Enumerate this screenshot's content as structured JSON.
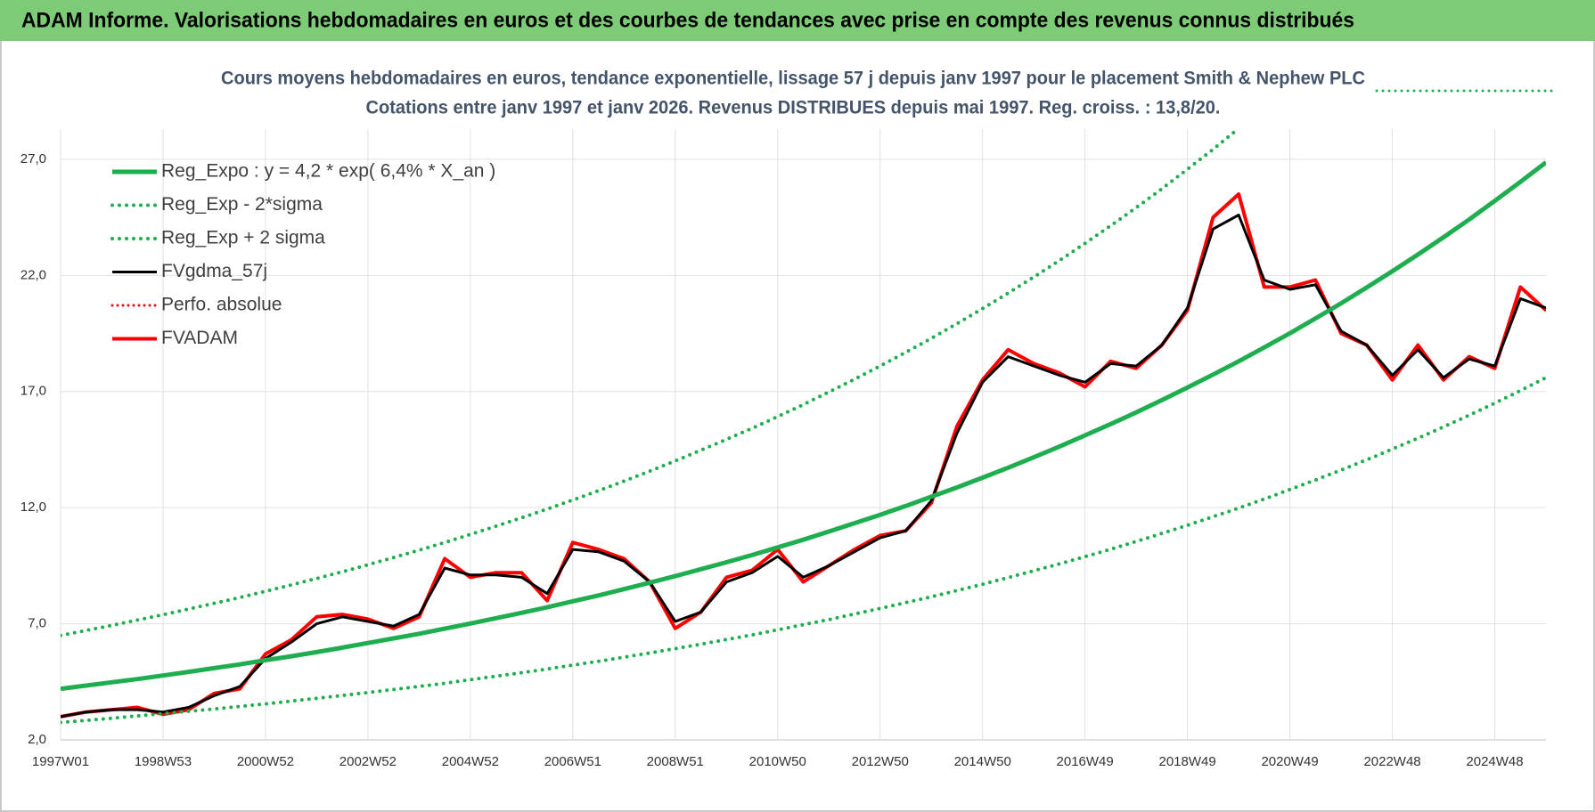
{
  "chart_data": {
    "type": "line",
    "header": "ADAM Informe. Valorisations hebdomadaires en euros et des courbes de tendances avec prise en compte des revenus connus distribués",
    "title": "Cours moyens hebdomadaires en euros, tendance exponentielle, lissage 57 j depuis janv 1997 pour le placement Smith & Nephew PLC",
    "subtitle": "Cotations entre janv 1997 et janv 2026. Revenus DISTRIBUES depuis mai 1997.  Reg. croiss. : 13,8/20.",
    "categories": [
      "1997W01",
      null,
      null,
      null,
      "1998W53",
      null,
      null,
      null,
      "2000W52",
      null,
      null,
      null,
      "2002W52",
      null,
      null,
      null,
      "2004W52",
      null,
      null,
      null,
      "2006W51",
      null,
      null,
      null,
      "2008W51",
      null,
      null,
      null,
      "2010W50",
      null,
      null,
      null,
      "2012W50",
      null,
      null,
      null,
      "2014W50",
      null,
      null,
      null,
      "2016W49",
      null,
      null,
      null,
      "2018W49",
      null,
      null,
      null,
      "2020W49",
      null,
      null,
      null,
      "2022W48",
      null,
      null,
      null,
      "2024W48",
      null,
      null
    ],
    "ylim": [
      2,
      28.3
    ],
    "yticks": [
      {
        "value": 2,
        "label": "2,0"
      },
      {
        "value": 7,
        "label": "7,0"
      },
      {
        "value": 12,
        "label": "12,0"
      },
      {
        "value": 17,
        "label": "17,0"
      },
      {
        "value": 22,
        "label": "22,0"
      },
      {
        "value": 27,
        "label": "27,0"
      }
    ],
    "grid": true,
    "legend_position": "upper left",
    "series": [
      {
        "name": "Reg_Expo : y = 4,2 * exp( 6,4% *  X_an )",
        "color": "#1fae4f",
        "style": "solid",
        "values": [
          4.2,
          4.34,
          4.48,
          4.62,
          4.77,
          4.93,
          5.09,
          5.25,
          5.43,
          5.6,
          5.78,
          5.97,
          6.17,
          6.37,
          6.57,
          6.79,
          7.01,
          7.24,
          7.47,
          7.71,
          7.97,
          8.22,
          8.49,
          8.77,
          9.05,
          9.35,
          9.65,
          9.96,
          10.29,
          10.62,
          10.97,
          11.33,
          11.69,
          12.07,
          12.47,
          12.87,
          13.29,
          13.72,
          14.17,
          14.63,
          15.11,
          15.6,
          16.1,
          16.63,
          17.17,
          17.73,
          18.3,
          18.9,
          19.51,
          20.15,
          20.8,
          21.48,
          22.18,
          22.9,
          23.64,
          24.41,
          25.21,
          26.03,
          26.87
        ]
      },
      {
        "name": "Reg_Exp - 2*sigma",
        "color": "#1fae4f",
        "style": "dotted",
        "values": [
          2.75,
          2.84,
          2.93,
          3.03,
          3.13,
          3.23,
          3.33,
          3.44,
          3.55,
          3.67,
          3.79,
          3.91,
          4.04,
          4.17,
          4.3,
          4.44,
          4.59,
          4.74,
          4.89,
          5.05,
          5.22,
          5.38,
          5.56,
          5.74,
          5.93,
          6.12,
          6.32,
          6.52,
          6.74,
          6.96,
          7.18,
          7.42,
          7.66,
          7.91,
          8.16,
          8.43,
          8.7,
          8.99,
          9.28,
          9.58,
          9.89,
          10.21,
          10.54,
          10.89,
          11.24,
          11.61,
          11.98,
          12.37,
          12.78,
          13.19,
          13.62,
          14.06,
          14.52,
          14.99,
          15.48,
          15.98,
          16.5,
          17.04,
          17.6
        ]
      },
      {
        "name": "Reg_Exp + 2 sigma",
        "color": "#1fae4f",
        "style": "dotted",
        "values": [
          6.5,
          6.71,
          6.93,
          7.16,
          7.39,
          7.63,
          7.88,
          8.13,
          8.4,
          8.67,
          8.95,
          9.24,
          9.54,
          9.85,
          10.17,
          10.5,
          10.85,
          11.2,
          11.56,
          11.94,
          12.33,
          12.73,
          13.14,
          13.57,
          14.01,
          14.47,
          14.94,
          15.42,
          15.92,
          16.44,
          16.98,
          17.53,
          18.1,
          18.69,
          19.29,
          19.92,
          20.57,
          21.24,
          21.93,
          22.64,
          23.38,
          24.14,
          24.92,
          25.73,
          26.57,
          27.43,
          28.33,
          null,
          null,
          null,
          null,
          null,
          null,
          null,
          null,
          null,
          null,
          null,
          null
        ]
      },
      {
        "name": "FVgdma_57j",
        "color": "#000000",
        "style": "solid",
        "values": [
          3.0,
          3.2,
          3.3,
          3.3,
          3.2,
          3.4,
          3.9,
          4.3,
          5.5,
          6.2,
          7.0,
          7.3,
          7.1,
          6.9,
          7.4,
          9.4,
          9.1,
          9.1,
          9.0,
          8.3,
          10.2,
          10.1,
          9.7,
          8.8,
          7.1,
          7.5,
          8.8,
          9.2,
          9.9,
          9.0,
          9.5,
          10.1,
          10.7,
          11.0,
          12.3,
          15.2,
          17.4,
          18.5,
          18.1,
          17.7,
          17.4,
          18.2,
          18.1,
          19.0,
          20.6,
          24.0,
          24.6,
          21.8,
          21.4,
          21.6,
          19.6,
          19.0,
          17.7,
          18.8,
          17.6,
          18.4,
          18.1,
          21.0,
          20.6
        ]
      },
      {
        "name": "Perfo. absolue",
        "color": "#ff0000",
        "style": "dotted",
        "values": [
          3.0,
          3.2,
          3.3,
          3.4,
          3.1,
          3.3,
          4.0,
          4.2,
          5.7,
          6.3,
          7.3,
          7.4,
          7.2,
          6.8,
          7.3,
          9.8,
          9.0,
          9.2,
          9.2,
          8.0,
          10.5,
          10.2,
          9.8,
          8.8,
          6.8,
          7.5,
          9.0,
          9.3,
          10.2,
          8.8,
          9.5,
          10.2,
          10.8,
          11.0,
          12.2,
          15.5,
          17.5,
          18.8,
          18.2,
          17.8,
          17.2,
          18.3,
          18.0,
          19.0,
          20.5,
          24.5,
          25.5,
          21.5,
          21.5,
          21.8,
          19.5,
          19.0,
          17.5,
          19.0,
          17.5,
          18.5,
          18.0,
          21.5,
          20.5
        ]
      },
      {
        "name": "FVADAM",
        "color": "#ff0000",
        "style": "solid",
        "values": [
          3.0,
          3.2,
          3.3,
          3.4,
          3.1,
          3.3,
          4.0,
          4.2,
          5.7,
          6.3,
          7.3,
          7.4,
          7.2,
          6.8,
          7.3,
          9.8,
          9.0,
          9.2,
          9.2,
          8.0,
          10.5,
          10.2,
          9.8,
          8.8,
          6.8,
          7.5,
          9.0,
          9.3,
          10.2,
          8.8,
          9.5,
          10.2,
          10.8,
          11.0,
          12.2,
          15.5,
          17.5,
          18.8,
          18.2,
          17.8,
          17.2,
          18.3,
          18.0,
          19.0,
          20.5,
          24.5,
          25.5,
          21.5,
          21.5,
          21.8,
          19.5,
          19.0,
          17.5,
          19.0,
          17.5,
          18.5,
          18.0,
          21.5,
          20.5
        ]
      }
    ]
  }
}
